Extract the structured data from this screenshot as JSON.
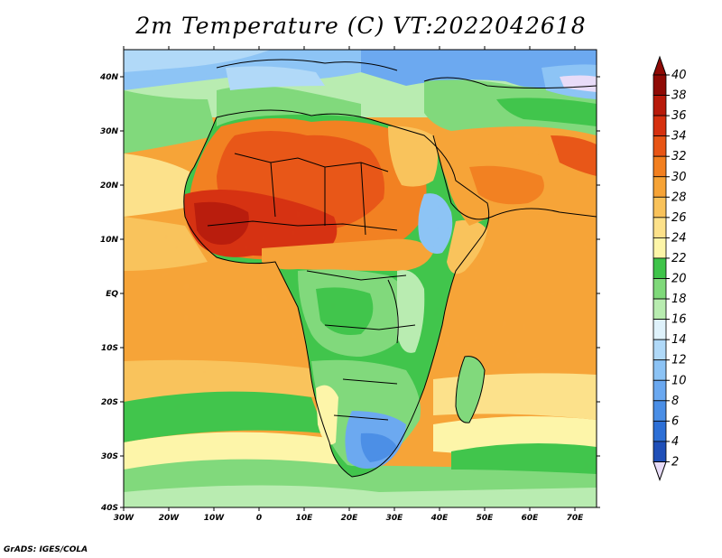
{
  "title": "2m Temperature (C) VT:2022042618",
  "credit": "GrADS: IGES/COLA",
  "map": {
    "lon_labels": [
      "30W",
      "20W",
      "10W",
      "0",
      "10E",
      "20E",
      "30E",
      "40E",
      "50E",
      "60E",
      "70E"
    ],
    "lat_labels": [
      "40N",
      "30N",
      "20N",
      "10N",
      "EQ",
      "10S",
      "20S",
      "30S",
      "40S"
    ]
  },
  "colorbar": {
    "levels": [
      "2",
      "4",
      "6",
      "8",
      "10",
      "12",
      "14",
      "16",
      "18",
      "20",
      "22",
      "24",
      "26",
      "28",
      "30",
      "32",
      "34",
      "36",
      "38",
      "40"
    ],
    "colors": [
      "#1a1a80",
      "#1f4fb8",
      "#2d6fd6",
      "#4a8ee6",
      "#6aa8f0",
      "#8cc3f5",
      "#b0d9f8",
      "#dff2fb",
      "#b8ecb0",
      "#7fd97a",
      "#3fc44a",
      "#fdf5a8",
      "#fce18a",
      "#f9c25a",
      "#f6a336",
      "#f27f1f",
      "#e85515",
      "#d6300f",
      "#b81a0a",
      "#8f0a05"
    ],
    "under_color": "#e8dcf8",
    "over_color": "#8f0a05"
  }
}
